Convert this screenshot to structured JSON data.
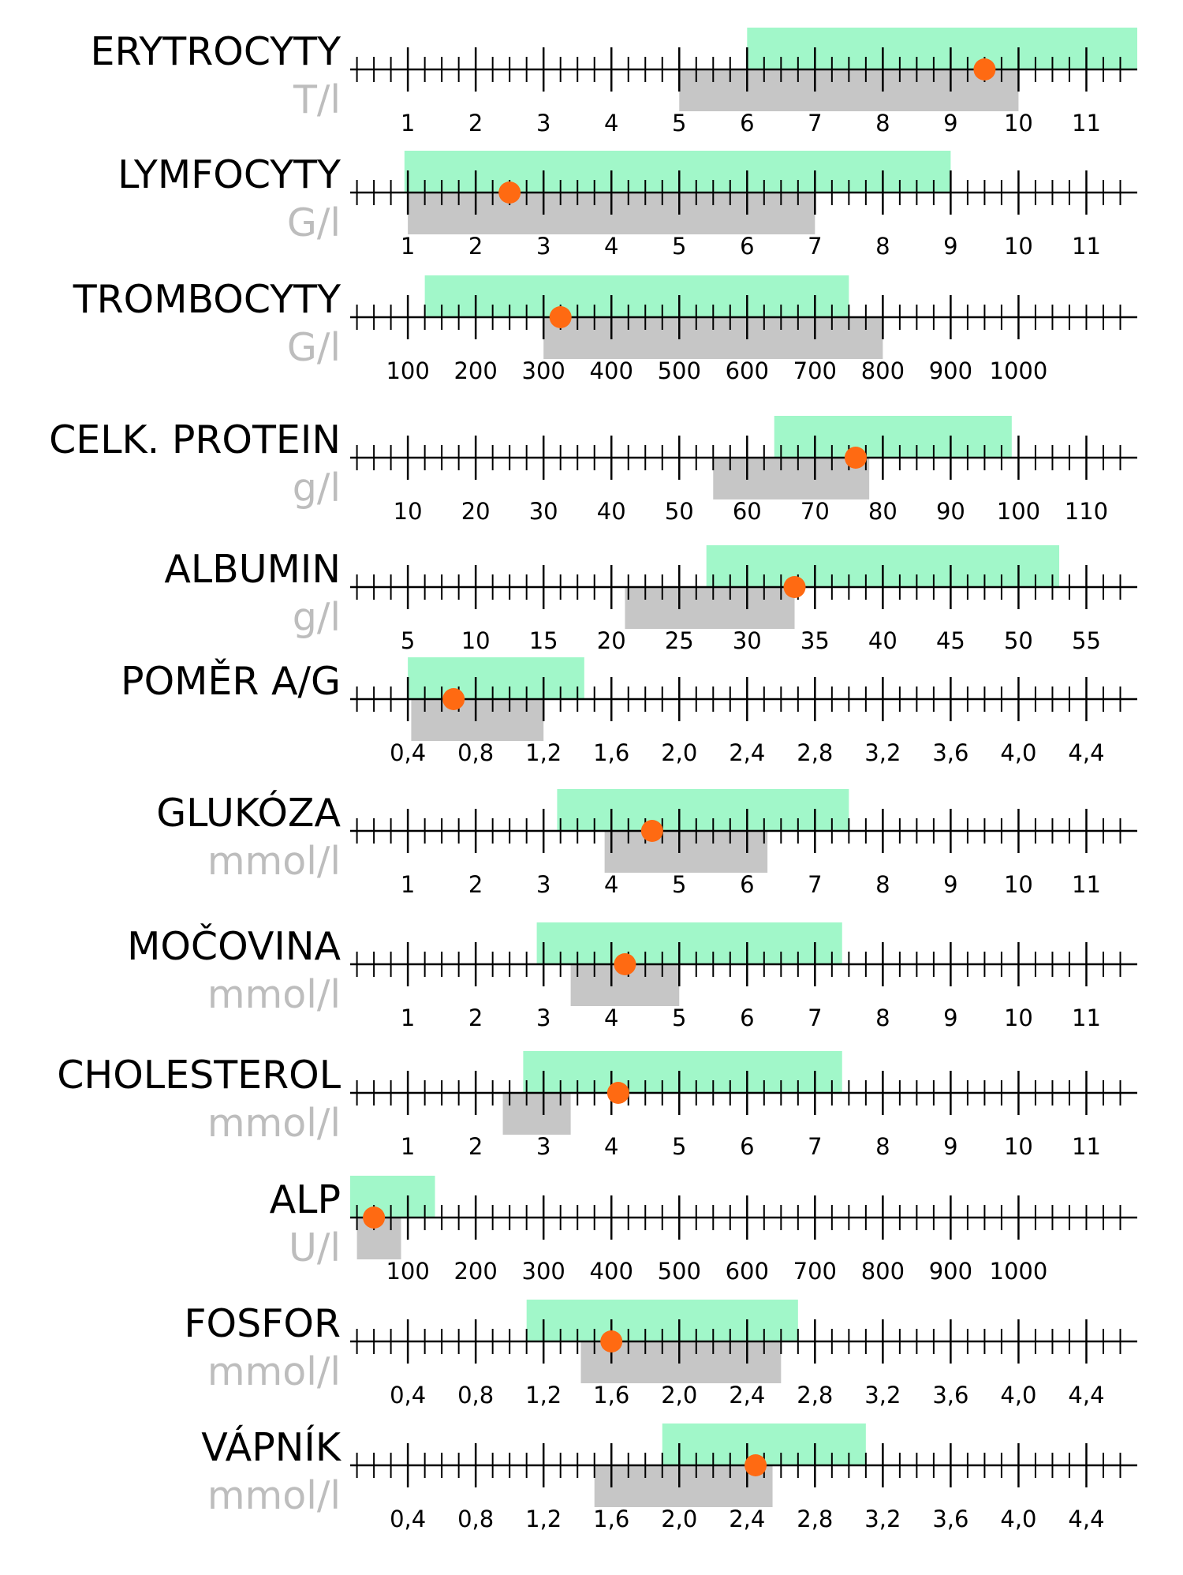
{
  "colors": {
    "reference_range": "#a1f7c9",
    "measured_range": "#c6c6c6",
    "patient_value": "#ff6a12",
    "axis": "#000000",
    "unit_text": "#bdbdbd"
  },
  "chart_data": [
    {
      "type": "range-bar",
      "title": "ERYTROCYTY",
      "unit": "T/l",
      "xlim": [
        0.15,
        11.75
      ],
      "ticks": [
        1,
        2,
        3,
        4,
        5,
        6,
        7,
        8,
        9,
        10,
        11
      ],
      "tick_labels": [
        "1",
        "2",
        "3",
        "4",
        "5",
        "6",
        "7",
        "8",
        "9",
        "10",
        "11"
      ],
      "minor_step": 0.25,
      "reference_range": [
        6.0,
        11.75
      ],
      "measured_range": [
        5.0,
        10.0
      ],
      "value": 9.5
    },
    {
      "type": "range-bar",
      "title": "LYMFOCYTY",
      "unit": "G/l",
      "xlim": [
        0.15,
        11.75
      ],
      "ticks": [
        1,
        2,
        3,
        4,
        5,
        6,
        7,
        8,
        9,
        10,
        11
      ],
      "tick_labels": [
        "1",
        "2",
        "3",
        "4",
        "5",
        "6",
        "7",
        "8",
        "9",
        "10",
        "11"
      ],
      "minor_step": 0.25,
      "reference_range": [
        0.95,
        9.0
      ],
      "measured_range": [
        1.0,
        7.0
      ],
      "value": 2.5
    },
    {
      "type": "range-bar",
      "title": "TROMBOCYTY",
      "unit": "G/l",
      "xlim": [
        15,
        1175
      ],
      "ticks": [
        100,
        200,
        300,
        400,
        500,
        600,
        700,
        800,
        900,
        1000
      ],
      "tick_labels": [
        "100",
        "200",
        "300",
        "400",
        "500",
        "600",
        "700",
        "800",
        "900",
        "1000"
      ],
      "minor_step": 25,
      "reference_range": [
        125,
        750
      ],
      "measured_range": [
        300,
        800
      ],
      "value": 325
    },
    {
      "type": "range-bar",
      "title": "CELK. PROTEIN",
      "unit": "g/l",
      "xlim": [
        1.5,
        117.5
      ],
      "ticks": [
        10,
        20,
        30,
        40,
        50,
        60,
        70,
        80,
        90,
        100,
        110
      ],
      "tick_labels": [
        "10",
        "20",
        "30",
        "40",
        "50",
        "60",
        "70",
        "80",
        "90",
        "100",
        "110"
      ],
      "minor_step": 2.5,
      "reference_range": [
        64,
        99
      ],
      "measured_range": [
        55,
        78
      ],
      "value": 76
    },
    {
      "type": "range-bar",
      "title": "ALBUMIN",
      "unit": "g/l",
      "xlim": [
        0.75,
        58.75
      ],
      "ticks": [
        5,
        10,
        15,
        20,
        25,
        30,
        35,
        40,
        45,
        50,
        55
      ],
      "tick_labels": [
        "5",
        "10",
        "15",
        "20",
        "25",
        "30",
        "35",
        "40",
        "45",
        "50",
        "55"
      ],
      "minor_step": 1.25,
      "reference_range": [
        27,
        53
      ],
      "measured_range": [
        21,
        33.5
      ],
      "value": 33.5
    },
    {
      "type": "range-bar",
      "title": "POMĚR A/G",
      "unit": "",
      "xlim": [
        0.06,
        4.7
      ],
      "ticks": [
        0.4,
        0.8,
        1.2,
        1.6,
        2.0,
        2.4,
        2.8,
        3.2,
        3.6,
        4.0,
        4.4
      ],
      "tick_labels": [
        "0,4",
        "0,8",
        "1,2",
        "1,6",
        "2,0",
        "2,4",
        "2,8",
        "3,2",
        "3,6",
        "4,0",
        "4,4"
      ],
      "minor_step": 0.1,
      "reference_range": [
        0.4,
        1.44
      ],
      "measured_range": [
        0.42,
        1.2
      ],
      "value": 0.67
    },
    {
      "type": "range-bar",
      "title": "GLUKÓZA",
      "unit": "mmol/l",
      "xlim": [
        0.15,
        11.75
      ],
      "ticks": [
        1,
        2,
        3,
        4,
        5,
        6,
        7,
        8,
        9,
        10,
        11
      ],
      "tick_labels": [
        "1",
        "2",
        "3",
        "4",
        "5",
        "6",
        "7",
        "8",
        "9",
        "10",
        "11"
      ],
      "minor_step": 0.25,
      "reference_range": [
        3.2,
        7.5
      ],
      "measured_range": [
        3.9,
        6.3
      ],
      "value": 4.6
    },
    {
      "type": "range-bar",
      "title": "MOČOVINA",
      "unit": "mmol/l",
      "xlim": [
        0.15,
        11.75
      ],
      "ticks": [
        1,
        2,
        3,
        4,
        5,
        6,
        7,
        8,
        9,
        10,
        11
      ],
      "tick_labels": [
        "1",
        "2",
        "3",
        "4",
        "5",
        "6",
        "7",
        "8",
        "9",
        "10",
        "11"
      ],
      "minor_step": 0.25,
      "reference_range": [
        2.9,
        7.4
      ],
      "measured_range": [
        3.4,
        5.0
      ],
      "value": 4.2
    },
    {
      "type": "range-bar",
      "title": "CHOLESTEROL",
      "unit": "mmol/l",
      "xlim": [
        0.15,
        11.75
      ],
      "ticks": [
        1,
        2,
        3,
        4,
        5,
        6,
        7,
        8,
        9,
        10,
        11
      ],
      "tick_labels": [
        "1",
        "2",
        "3",
        "4",
        "5",
        "6",
        "7",
        "8",
        "9",
        "10",
        "11"
      ],
      "minor_step": 0.25,
      "reference_range": [
        2.7,
        7.4
      ],
      "measured_range": [
        2.4,
        3.4
      ],
      "value": 4.1
    },
    {
      "type": "range-bar",
      "title": "ALP",
      "unit": "U/l",
      "xlim": [
        15,
        1175
      ],
      "ticks": [
        100,
        200,
        300,
        400,
        500,
        600,
        700,
        800,
        900,
        1000
      ],
      "tick_labels": [
        "100",
        "200",
        "300",
        "400",
        "500",
        "600",
        "700",
        "800",
        "900",
        "1000"
      ],
      "minor_step": 25,
      "reference_range": [
        15,
        140
      ],
      "measured_range": [
        25,
        90
      ],
      "value": 50
    },
    {
      "type": "range-bar",
      "title": "FOSFOR",
      "unit": "mmol/l",
      "xlim": [
        0.06,
        4.7
      ],
      "ticks": [
        0.4,
        0.8,
        1.2,
        1.6,
        2.0,
        2.4,
        2.8,
        3.2,
        3.6,
        4.0,
        4.4
      ],
      "tick_labels": [
        "0,4",
        "0,8",
        "1,2",
        "1,6",
        "2,0",
        "2,4",
        "2,8",
        "3,2",
        "3,6",
        "4,0",
        "4,4"
      ],
      "minor_step": 0.1,
      "reference_range": [
        1.1,
        2.7
      ],
      "measured_range": [
        1.42,
        2.6
      ],
      "value": 1.6
    },
    {
      "type": "range-bar",
      "title": "VÁPNÍK",
      "unit": "mmol/l",
      "xlim": [
        0.06,
        4.7
      ],
      "ticks": [
        0.4,
        0.8,
        1.2,
        1.6,
        2.0,
        2.4,
        2.8,
        3.2,
        3.6,
        4.0,
        4.4
      ],
      "tick_labels": [
        "0,4",
        "0,8",
        "1,2",
        "1,6",
        "2,0",
        "2,4",
        "2,8",
        "3,2",
        "3,6",
        "4,0",
        "4,4"
      ],
      "minor_step": 0.1,
      "reference_range": [
        1.9,
        3.1
      ],
      "measured_range": [
        1.5,
        2.55
      ],
      "value": 2.45
    }
  ]
}
